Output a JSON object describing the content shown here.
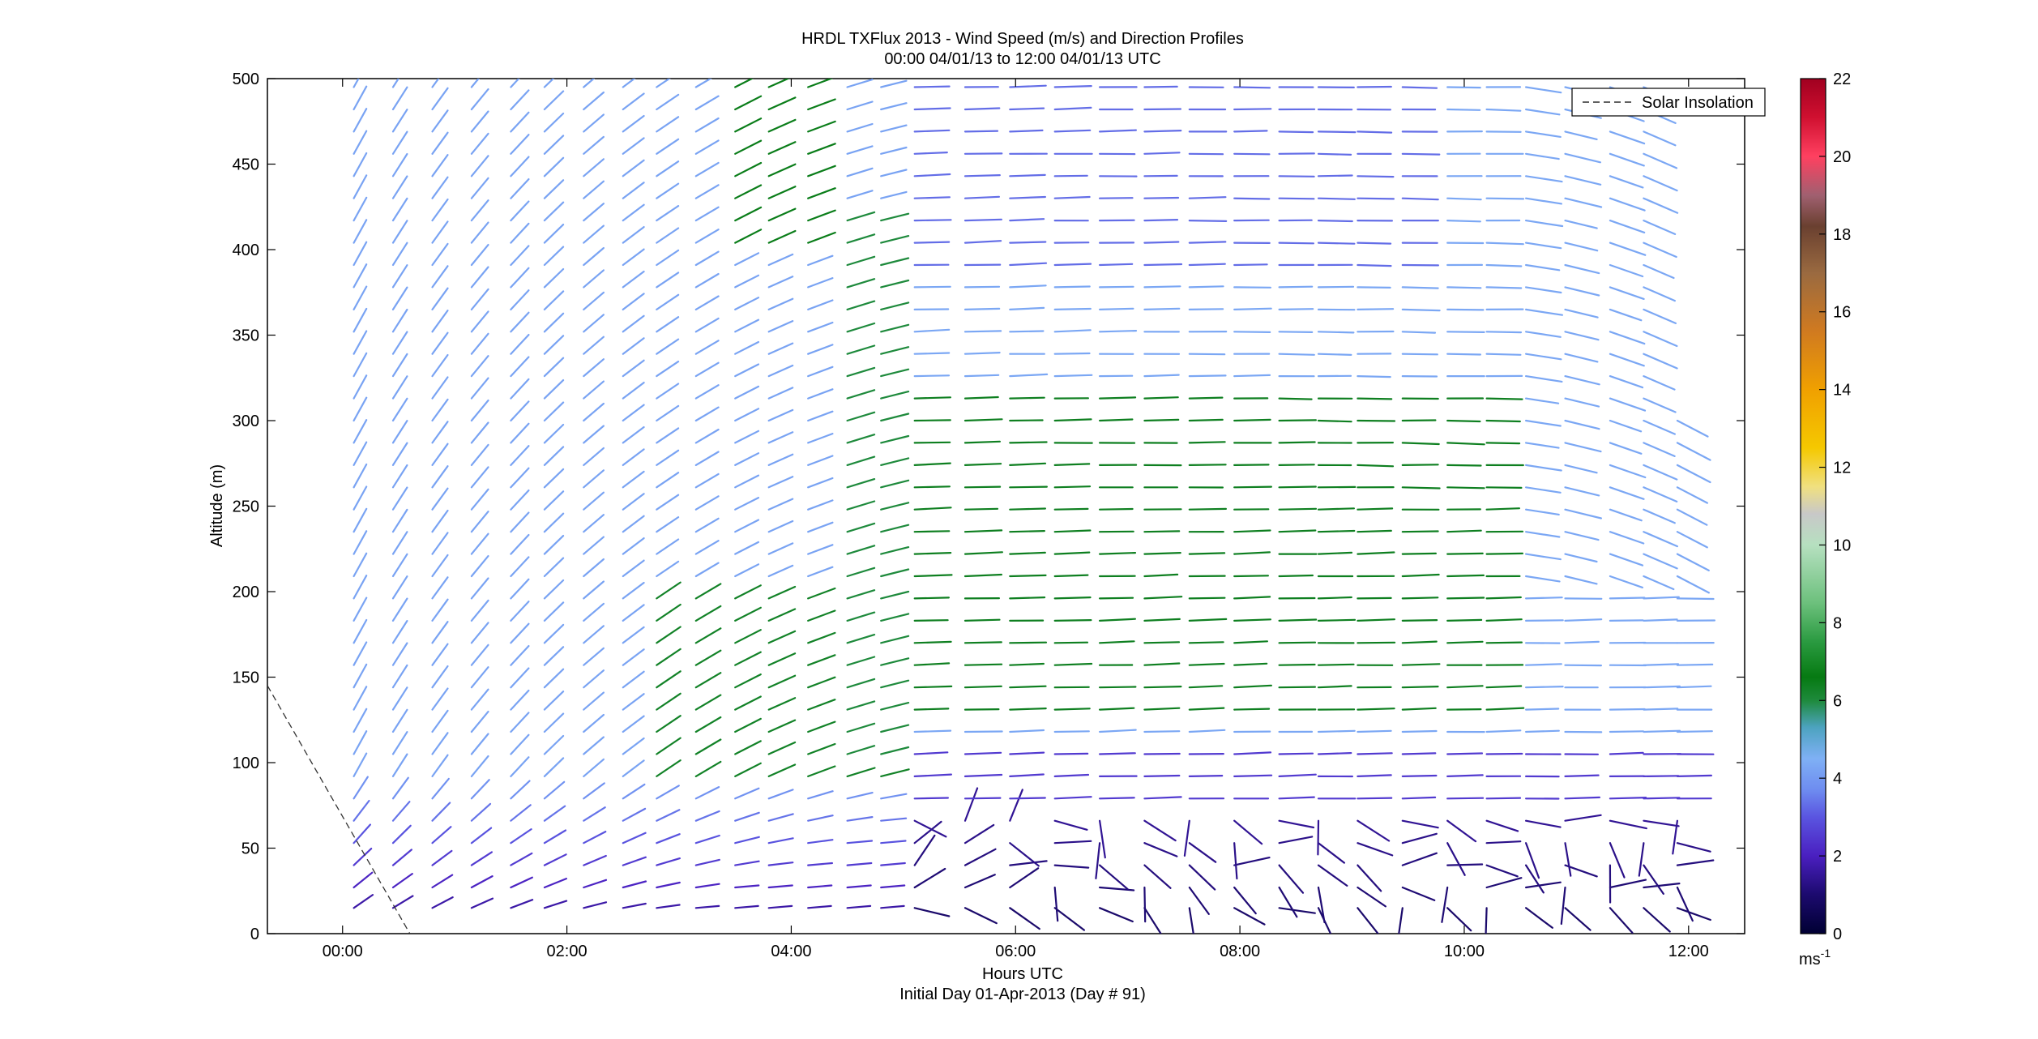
{
  "chart_data": {
    "type": "quiver",
    "title": "HRDL TXFlux 2013 - Wind Speed (m/s) and Direction Profiles",
    "subtitle": "00:00 04/01/13 to 12:00 04/01/13  UTC",
    "xlabel": "Hours UTC",
    "xlabel2": "Initial Day 01-Apr-2013 (Day # 91)",
    "ylabel": "Altitude (m)",
    "xlim_hours": [
      -0.67,
      12.5
    ],
    "ylim": [
      0,
      500
    ],
    "xticks": [
      {
        "value": 0,
        "label": "00:00"
      },
      {
        "value": 2,
        "label": "02:00"
      },
      {
        "value": 4,
        "label": "04:00"
      },
      {
        "value": 6,
        "label": "06:00"
      },
      {
        "value": 8,
        "label": "08:00"
      },
      {
        "value": 10,
        "label": "10:00"
      },
      {
        "value": 12,
        "label": "12:00"
      }
    ],
    "yticks": [
      0,
      50,
      100,
      150,
      200,
      250,
      300,
      350,
      400,
      450,
      500
    ],
    "colorbar": {
      "min": 0,
      "max": 22,
      "ticks": [
        0,
        2,
        4,
        6,
        8,
        10,
        12,
        14,
        16,
        18,
        20,
        22
      ],
      "unit_label": "ms",
      "unit_exponent": "-1"
    },
    "legend": {
      "label": "Solar Insolation",
      "position": "top-right"
    },
    "solar_insolation_line": {
      "x": [
        -0.67,
        0.6
      ],
      "y": [
        145,
        0
      ]
    },
    "profile_times_hours": [
      0.1,
      0.45,
      0.8,
      1.15,
      1.5,
      1.8,
      2.15,
      2.5,
      2.8,
      3.15,
      3.5,
      3.8,
      4.15,
      4.5,
      4.8,
      5.1,
      5.55,
      5.95,
      6.35,
      6.75,
      7.15,
      7.55,
      7.95,
      8.35,
      8.7,
      9.05,
      9.45,
      9.85,
      10.2,
      10.55,
      10.9,
      11.3,
      11.6,
      11.9
    ],
    "altitudes_m": [
      15,
      27,
      40,
      53,
      66,
      79,
      92,
      105,
      118,
      131,
      144,
      157,
      170,
      183,
      196,
      209,
      222,
      235,
      248,
      261,
      274,
      287,
      300,
      313,
      326,
      339,
      352,
      365,
      378,
      391,
      404,
      417,
      430,
      443,
      456,
      469,
      482,
      495
    ],
    "field_description": {
      "direction_from_deg_by_period": {
        "00:00-05:00": 200,
        "05:00-12:00": 270
      },
      "speed_ms_range": [
        0.5,
        8
      ]
    }
  }
}
